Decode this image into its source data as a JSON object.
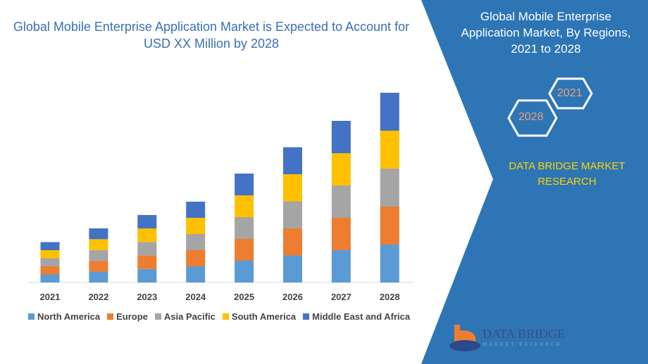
{
  "title": "Global Mobile Enterprise Application Market is Expected to Account for USD XX Million by 2028",
  "side": {
    "title": "Global Mobile Enterprise Application Market, By Regions, 2021 to 2028",
    "hex_a": "2021",
    "hex_b": "2028",
    "brand": "DATA BRIDGE MARKET RESEARCH",
    "logo_main": "DATA BRIDGE",
    "logo_sub": "MARKET RESEARCH",
    "color": "#2e75b6"
  },
  "chart_data": {
    "type": "bar",
    "stacked": true,
    "categories": [
      "2021",
      "2022",
      "2023",
      "2024",
      "2025",
      "2026",
      "2027",
      "2028"
    ],
    "series": [
      {
        "name": "North America",
        "color": "#5b9bd5",
        "values": [
          11.5,
          15.4,
          19.2,
          23,
          31,
          38.5,
          46,
          54
        ]
      },
      {
        "name": "Europe",
        "color": "#ed7d31",
        "values": [
          11.5,
          15.4,
          19.2,
          23,
          31,
          38.5,
          46,
          54
        ]
      },
      {
        "name": "Asia Pacific",
        "color": "#a5a5a5",
        "values": [
          11.5,
          15.4,
          19.2,
          23,
          31,
          38.5,
          46,
          54
        ]
      },
      {
        "name": "South America",
        "color": "#ffc000",
        "values": [
          11.5,
          15.4,
          19.2,
          23,
          31,
          38.5,
          46,
          54
        ]
      },
      {
        "name": "Middle East and Africa",
        "color": "#4472c4",
        "values": [
          11.5,
          15.4,
          19.2,
          23,
          31,
          38.5,
          46,
          54
        ]
      }
    ],
    "ylim": [
      0,
      280
    ],
    "grid": false,
    "legend": "bottom"
  }
}
